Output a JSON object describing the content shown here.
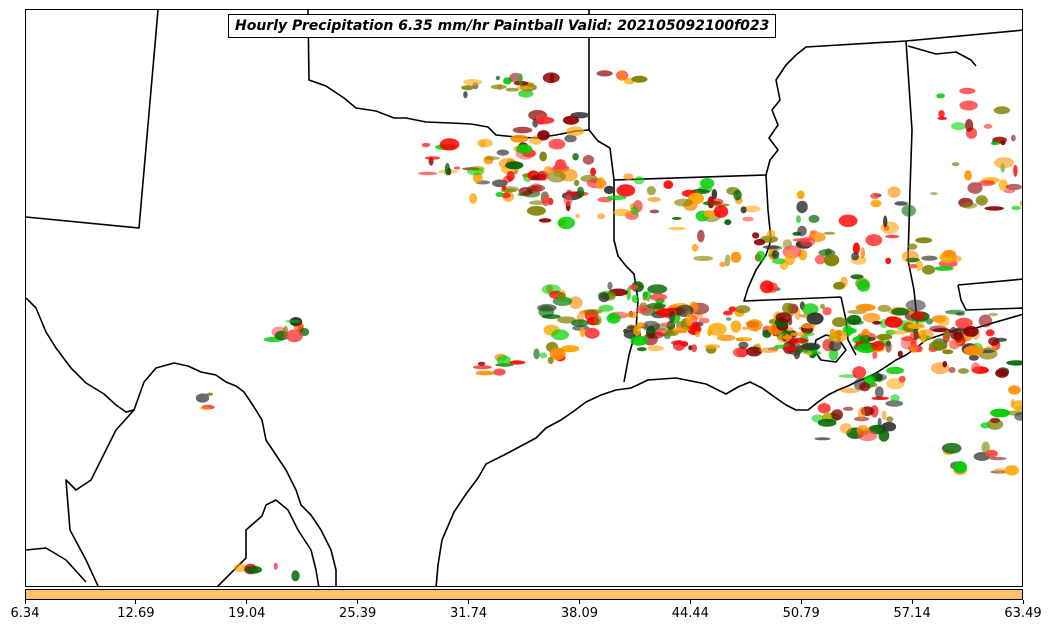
{
  "map": {
    "title": "Hourly Precipitation 6.35 mm/hr Paintball Valid: 202105092100f023",
    "background_color": "#ffffff",
    "border_color": "#000000"
  },
  "member_colors": [
    "#ff0000",
    "#8b0000",
    "#ff8c00",
    "#ffa500",
    "#00cc00",
    "#006400",
    "#808000",
    "#2f2f2f",
    "#ff4040"
  ],
  "colorbar": {
    "fill_color": "#ffc266",
    "tick_labels": [
      "6.34",
      "12.69",
      "19.04",
      "25.39",
      "31.74",
      "38.09",
      "44.44",
      "50.79",
      "57.14",
      "63.49"
    ]
  }
}
